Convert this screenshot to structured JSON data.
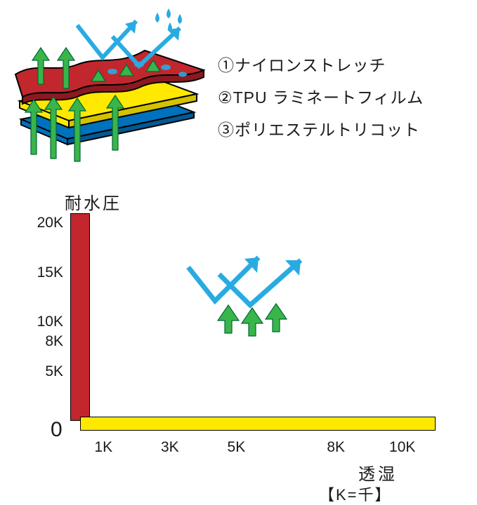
{
  "legend": {
    "items": [
      {
        "num": "①",
        "label": "ナイロンストレッチ"
      },
      {
        "num": "②",
        "label": "TPU ラミネートフィルム"
      },
      {
        "num": "③",
        "label": "ポリエステルトリコット"
      }
    ]
  },
  "layers": {
    "top": {
      "fill": "#c1272d",
      "stroke": "#000000"
    },
    "middle": {
      "fill": "#ffe900",
      "stroke": "#000000"
    },
    "bottom": {
      "fill": "#0071bc",
      "stroke": "#000000"
    },
    "vapor_arrow_color": "#39b54a",
    "vapor_arrow_stroke": "#006837",
    "water_arrow_color": "#29abe2",
    "droplet_color": "#29abe2"
  },
  "chart": {
    "y_title": "耐水圧",
    "x_title": "透湿",
    "note": "【K=千】",
    "origin_label": "0",
    "y": {
      "min": 0,
      "max": 21,
      "ticks": [
        {
          "v": 20,
          "label": "20K"
        },
        {
          "v": 15,
          "label": "15K"
        },
        {
          "v": 10,
          "label": "10K"
        },
        {
          "v": 8,
          "label": "8K"
        },
        {
          "v": 5,
          "label": "5K"
        }
      ]
    },
    "x": {
      "min": 0,
      "max": 11,
      "ticks": [
        {
          "v": 1,
          "label": "1K"
        },
        {
          "v": 3,
          "label": "3K"
        },
        {
          "v": 5,
          "label": "5K"
        },
        {
          "v": 8,
          "label": "8K"
        },
        {
          "v": 10,
          "label": "10K"
        }
      ]
    },
    "bar_red": {
      "color": "#c1272d",
      "height_value": 21
    },
    "bar_yellow": {
      "color": "#ffe900",
      "width_value": 11
    },
    "bounce_icon": {
      "x_value": 5.5,
      "y_value": 13
    },
    "label_fontsize": 21,
    "title_fontsize": 24
  },
  "colors": {
    "text": "#1a1a1a",
    "background": "#ffffff"
  }
}
